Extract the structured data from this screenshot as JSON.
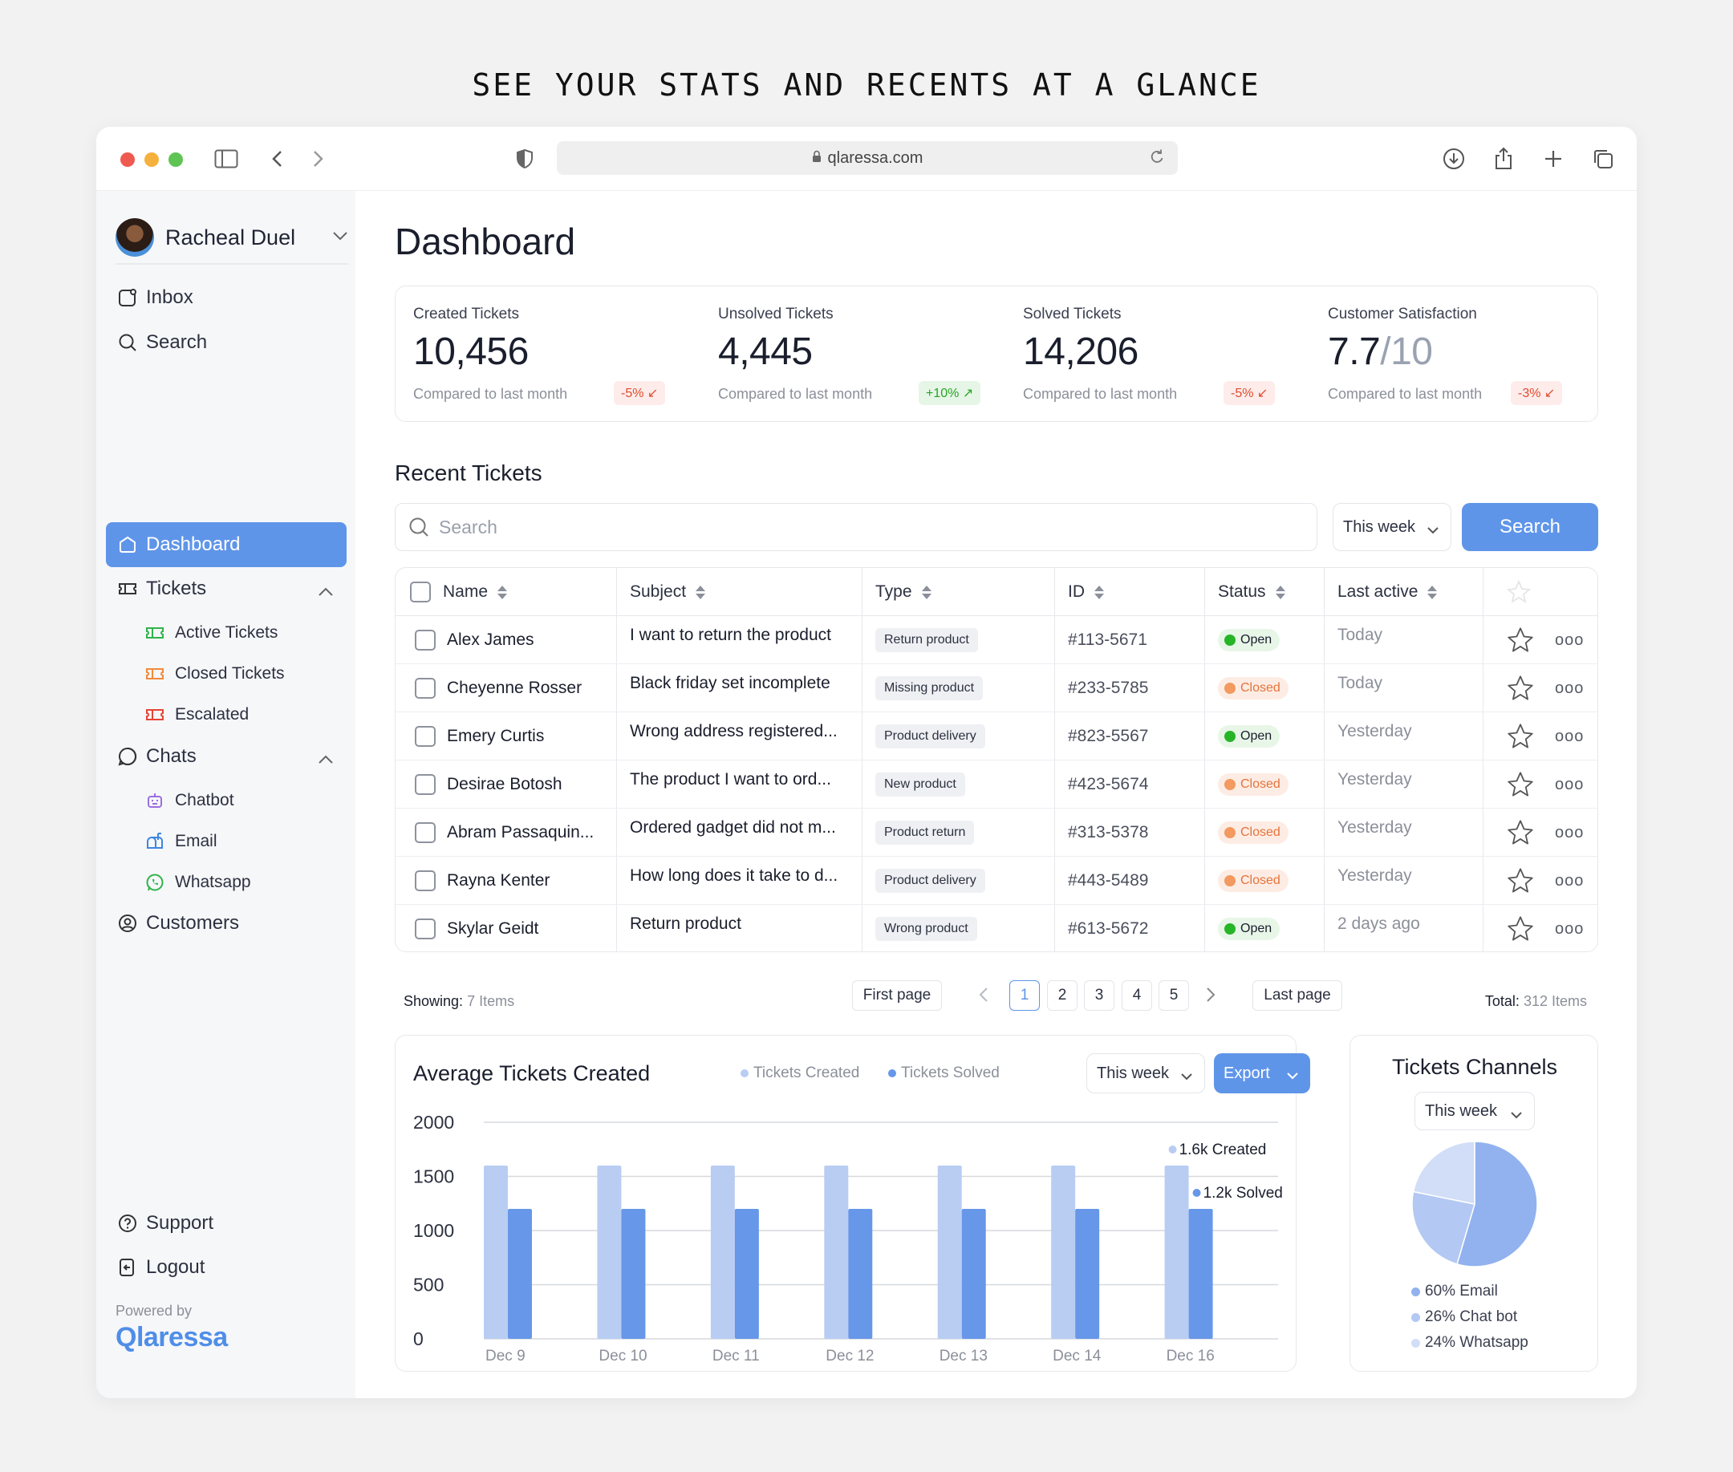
{
  "heading": "SEE YOUR STATS AND RECENTS AT A GLANCE",
  "browser": {
    "url": "qlaressa.com"
  },
  "sidebar": {
    "user": "Racheal Duel",
    "inbox": "Inbox",
    "search": "Search",
    "dashboard": "Dashboard",
    "tickets": "Tickets",
    "active_tickets": "Active Tickets",
    "closed_tickets": "Closed Tickets",
    "escalated": "Escalated",
    "chats": "Chats",
    "chatbot": "Chatbot",
    "email": "Email",
    "whatsapp": "Whatsapp",
    "customers": "Customers",
    "support": "Support",
    "logout": "Logout",
    "powered_by": "Powered by",
    "brand": "Qlaressa"
  },
  "dashboard": {
    "title": "Dashboard",
    "stats": [
      {
        "label": "Created Tickets",
        "value": "10,456",
        "compare": "Compared to last month",
        "delta": "-5% ↙"
      },
      {
        "label": "Unsolved Tickets",
        "value": "4,445",
        "compare": "Compared to last month",
        "delta": "+10% ↗"
      },
      {
        "label": "Solved Tickets",
        "value": "14,206",
        "compare": "Compared to last month",
        "delta": "-5% ↙"
      },
      {
        "label": "Customer Satisfaction",
        "value": "7.7",
        "value_suffix": "/10",
        "compare": "Compared to last month",
        "delta": "-3% ↙"
      }
    ]
  },
  "recent": {
    "title": "Recent Tickets",
    "search_placeholder": "Search",
    "period": "This week",
    "search_button": "Search",
    "columns": [
      "Name",
      "Subject",
      "Type",
      "ID",
      "Status",
      "Last active"
    ],
    "rows": [
      {
        "name": "Alex James",
        "subject": "I want to return the product",
        "type": "Return product",
        "id": "#113-5671",
        "status": "Open",
        "last": "Today"
      },
      {
        "name": "Cheyenne Rosser",
        "subject": "Black friday set incomplete",
        "type": "Missing product",
        "id": "#233-5785",
        "status": "Closed",
        "last": "Today"
      },
      {
        "name": "Emery Curtis",
        "subject": "Wrong address registered...",
        "type": "Product delivery",
        "id": "#823-5567",
        "status": "Open",
        "last": "Yesterday"
      },
      {
        "name": "Desirae Botosh",
        "subject": "The product I want to ord...",
        "type": "New product",
        "id": "#423-5674",
        "status": "Closed",
        "last": "Yesterday"
      },
      {
        "name": "Abram Passaquin...",
        "subject": "Ordered gadget did not m...",
        "type": "Product return",
        "id": "#313-5378",
        "status": "Closed",
        "last": "Yesterday"
      },
      {
        "name": "Rayna Kenter",
        "subject": "How long does it take to d...",
        "type": "Product delivery",
        "id": "#443-5489",
        "status": "Closed",
        "last": "Yesterday"
      },
      {
        "name": "Skylar Geidt",
        "subject": "Return product",
        "type": "Wrong product",
        "id": "#613-5672",
        "status": "Open",
        "last": "2 days ago"
      }
    ],
    "more": "ooo",
    "showing_label": "Showing:",
    "showing_value": "7 Items",
    "first_page": "First page",
    "pages": [
      "1",
      "2",
      "3",
      "4",
      "5"
    ],
    "current_page": "1",
    "last_page": "Last page",
    "total_label": "Total:",
    "total_value": "312 Items"
  },
  "avg_chart": {
    "title": "Average Tickets Created",
    "legend_created": "Tickets Created",
    "legend_solved": "Tickets Solved",
    "period": "This week",
    "export": "Export",
    "tooltip_created": "1.6k Created",
    "tooltip_solved": "1.2k Solved"
  },
  "channels": {
    "title": "Tickets Channels",
    "period": "This week",
    "legend": [
      "60% Email",
      "26% Chat bot",
      "24% Whatsapp"
    ]
  },
  "colors": {
    "accent": "#5f95e9",
    "created": "#b9cdf3",
    "solved": "#6697e8"
  },
  "chart_data": [
    {
      "type": "bar",
      "categories": [
        "Dec 9",
        "Dec 10",
        "Dec 11",
        "Dec 12",
        "Dec 13",
        "Dec 14",
        "Dec 16"
      ],
      "series": [
        {
          "name": "Tickets Created",
          "values": [
            1600,
            1600,
            1600,
            1600,
            1600,
            1600,
            1600
          ]
        },
        {
          "name": "Tickets Solved",
          "values": [
            1200,
            1200,
            1200,
            1200,
            1200,
            1200,
            1200
          ]
        }
      ],
      "yticks": [
        "2000",
        "1500",
        "1000",
        "500",
        "0"
      ],
      "ylim": [
        0,
        2000
      ],
      "grid": true
    },
    {
      "type": "pie",
      "labels": [
        "Email",
        "Chat bot",
        "Whatsapp"
      ],
      "values": [
        60,
        26,
        24
      ]
    }
  ]
}
